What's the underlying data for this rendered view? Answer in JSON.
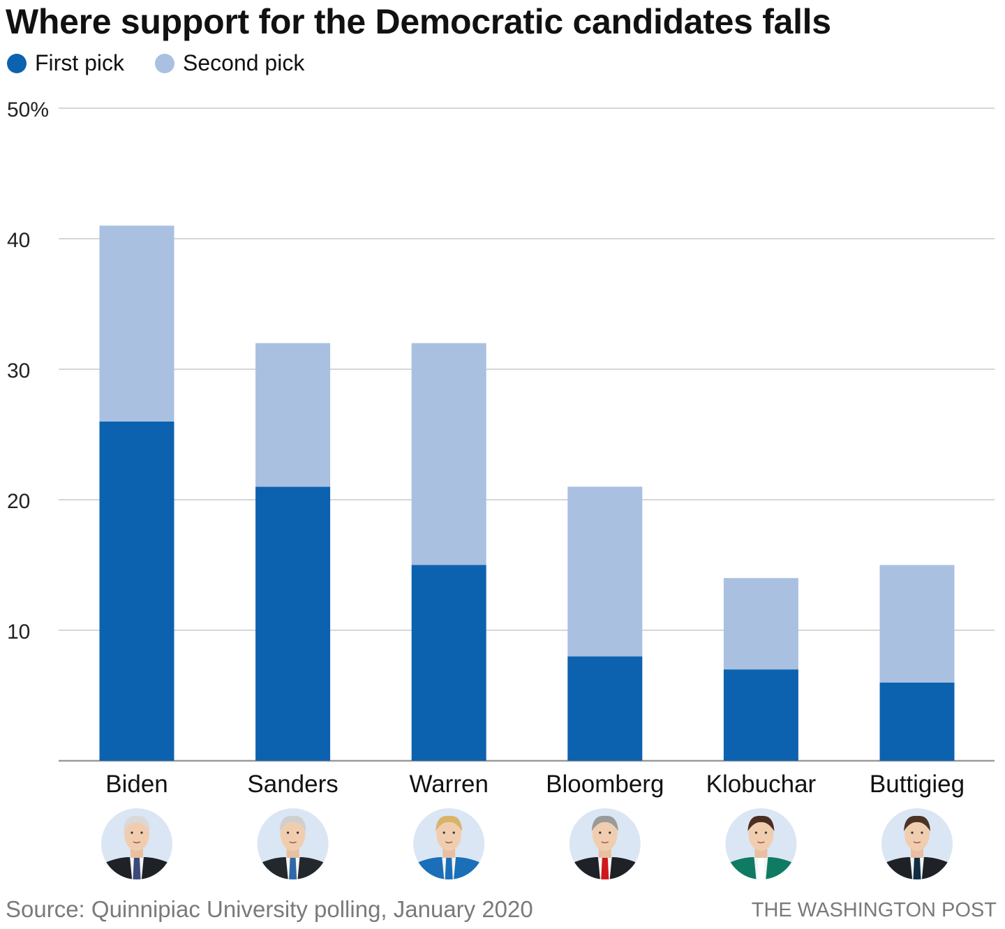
{
  "chart_data": {
    "type": "bar",
    "stacked": true,
    "title": "Where support for the Democratic candidates falls",
    "xlabel": "",
    "ylabel": "",
    "categories": [
      "Biden",
      "Sanders",
      "Warren",
      "Bloomberg",
      "Klobuchar",
      "Buttigieg"
    ],
    "series": [
      {
        "name": "First pick",
        "color": "#0d62b0",
        "values": [
          26,
          21,
          15,
          8,
          7,
          6
        ]
      },
      {
        "name": "Second pick",
        "color": "#a9c0e1",
        "values": [
          15,
          11,
          17,
          13,
          7,
          9
        ]
      }
    ],
    "ylim": [
      0,
      50
    ],
    "yticks": [
      10,
      20,
      30,
      40,
      50
    ],
    "ytick_labels": [
      "10",
      "20",
      "30",
      "40",
      "50%"
    ],
    "grid": true,
    "legend_position": "top-left",
    "source": "Source: Quinnipiac University polling, January 2020",
    "credit": "THE WASHINGTON POST"
  },
  "portraits": [
    {
      "name": "Biden",
      "tie_color": "#3b4a7a",
      "jacket_color": "#1e2226"
    },
    {
      "name": "Sanders",
      "tie_color": "#2f6aa8",
      "jacket_color": "#23282c"
    },
    {
      "name": "Warren",
      "tie_color": "#1a6fb8",
      "jacket_color": "#1a6fb8"
    },
    {
      "name": "Bloomberg",
      "tie_color": "#d0161b",
      "jacket_color": "#1e2226"
    },
    {
      "name": "Klobuchar",
      "tie_color": "#ffffff",
      "jacket_color": "#0f7b63"
    },
    {
      "name": "Buttigieg",
      "tie_color": "#0f2d45",
      "jacket_color": "#1e2226"
    }
  ]
}
